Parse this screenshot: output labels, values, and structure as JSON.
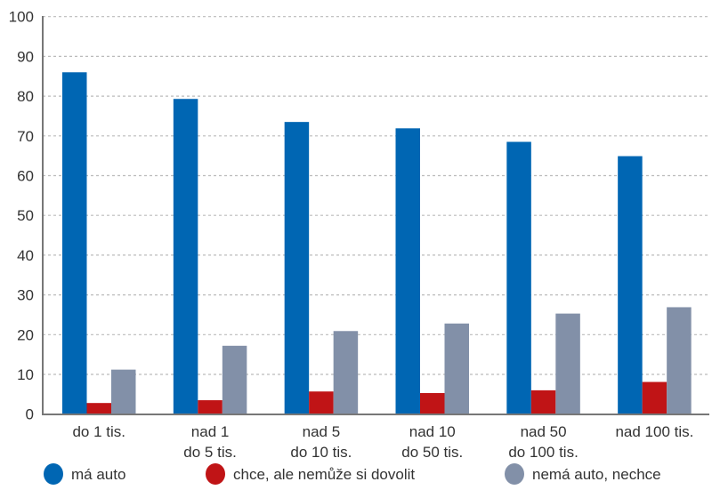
{
  "chart_data": {
    "type": "bar",
    "title": "",
    "xlabel": "",
    "ylabel": "",
    "ylim": [
      0,
      100
    ],
    "yticks": [
      0,
      10,
      20,
      30,
      40,
      50,
      60,
      70,
      80,
      90,
      100
    ],
    "grid": true,
    "legend_position": "bottom",
    "categories": [
      [
        "do 1 tis."
      ],
      [
        "nad 1",
        "do 5 tis."
      ],
      [
        "nad 5",
        "do 10 tis."
      ],
      [
        "nad 10",
        "do 50 tis."
      ],
      [
        "nad 50",
        "do 100 tis."
      ],
      [
        "nad 100 tis."
      ]
    ],
    "series": [
      {
        "name": "má auto",
        "color": "#0066b3",
        "values": [
          86.0,
          79.3,
          73.5,
          71.9,
          68.5,
          64.9
        ]
      },
      {
        "name": "chce, ale nemůže si dovolit",
        "color": "#c01416",
        "values": [
          2.8,
          3.5,
          5.7,
          5.3,
          6.0,
          8.1
        ]
      },
      {
        "name": "nemá auto, nechce",
        "color": "#8290a8",
        "values": [
          11.2,
          17.2,
          20.9,
          22.8,
          25.3,
          26.9
        ]
      }
    ]
  }
}
